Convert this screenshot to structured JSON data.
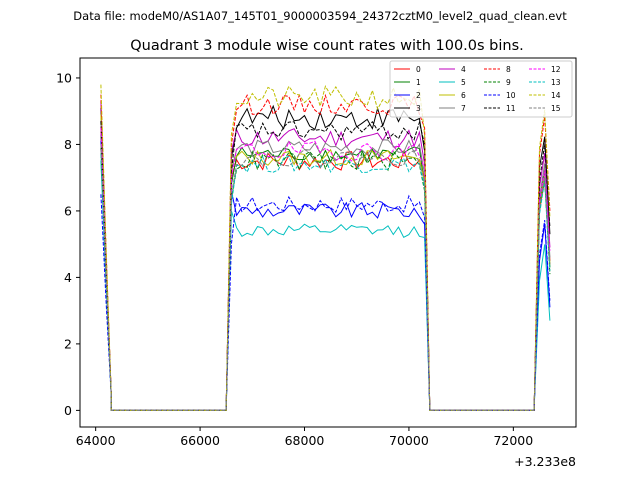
{
  "header": {
    "data_file": "Data file: modeM0/AS1A07_145T01_9000003594_24372cztM0_level2_quad_clean.evt",
    "title": "Quadrant 3 module wise count rates with 100.0s bins."
  },
  "chart_data": {
    "type": "line",
    "title": "Quadrant 3 module wise count rates with 100.0s bins.",
    "xlabel": "",
    "ylabel": "",
    "x_offset_label": "+3.233e8",
    "xlim": [
      63700,
      73200
    ],
    "ylim": [
      -0.5,
      10.6
    ],
    "xticks": [
      64000,
      66000,
      68000,
      70000,
      72000
    ],
    "xtick_labels": [
      "64000",
      "66000",
      "68000",
      "70000",
      "72000"
    ],
    "yticks": [
      0,
      2,
      4,
      6,
      8,
      10
    ],
    "ytick_labels": [
      "0",
      "2",
      "4",
      "6",
      "8",
      "10"
    ],
    "grid": false,
    "legend_position": "top-right",
    "legend_columns": 4,
    "segments": [
      {
        "start": 64100,
        "end": 64300,
        "step": 100
      },
      {
        "start": 64300,
        "end": 66500,
        "step": 100,
        "zero": true
      },
      {
        "start": 66500,
        "end": 70300,
        "step": 100
      },
      {
        "start": 70400,
        "end": 72400,
        "step": 100,
        "zero": true
      },
      {
        "start": 72400,
        "end": 72700,
        "step": 100
      }
    ],
    "series": [
      {
        "name": "0",
        "color": "#ff0000",
        "dash": "solid",
        "level": 7.5,
        "noise": 0.3,
        "first": 8.0,
        "last": 7.0
      },
      {
        "name": "1",
        "color": "#008000",
        "dash": "solid",
        "level": 7.7,
        "noise": 0.25,
        "first": 7.8,
        "last": 6.8
      },
      {
        "name": "2",
        "color": "#0000ff",
        "dash": "solid",
        "level": 6.0,
        "noise": 0.25,
        "first": 7.6,
        "last": 5.6
      },
      {
        "name": "3",
        "color": "#000000",
        "dash": "solid",
        "level": 8.8,
        "noise": 0.35,
        "first": 8.6,
        "last": 7.8
      },
      {
        "name": "4",
        "color": "#bf00bf",
        "dash": "solid",
        "level": 8.2,
        "noise": 0.3,
        "first": 8.8,
        "last": 7.4
      },
      {
        "name": "5",
        "color": "#00bfbf",
        "dash": "solid",
        "level": 5.4,
        "noise": 0.2,
        "first": 7.0,
        "last": 5.2
      },
      {
        "name": "6",
        "color": "#bfbf00",
        "dash": "solid",
        "level": 7.6,
        "noise": 0.25,
        "first": 8.4,
        "last": 6.9
      },
      {
        "name": "7",
        "color": "#808080",
        "dash": "solid",
        "level": 7.9,
        "noise": 0.25,
        "first": 8.2,
        "last": 7.1
      },
      {
        "name": "8",
        "color": "#ff0000",
        "dash": "dashed",
        "level": 9.2,
        "noise": 0.3,
        "first": 9.0,
        "last": 8.5
      },
      {
        "name": "9",
        "color": "#008000",
        "dash": "dashed",
        "level": 7.5,
        "noise": 0.3,
        "first": 7.4,
        "last": 6.6
      },
      {
        "name": "10",
        "color": "#0000ff",
        "dash": "dashed",
        "level": 6.2,
        "noise": 0.25,
        "first": 6.0,
        "last": 5.8
      },
      {
        "name": "11",
        "color": "#000000",
        "dash": "dashed",
        "level": 8.4,
        "noise": 0.3,
        "first": 8.2,
        "last": 8.0
      },
      {
        "name": "12",
        "color": "#ff00ff",
        "dash": "dashed",
        "level": 7.8,
        "noise": 0.3,
        "first": 8.0,
        "last": 7.3
      },
      {
        "name": "13",
        "color": "#00bfbf",
        "dash": "dashed",
        "level": 7.4,
        "noise": 0.25,
        "first": 7.2,
        "last": 6.7
      },
      {
        "name": "14",
        "color": "#bfbf00",
        "dash": "dashed",
        "level": 9.4,
        "noise": 0.35,
        "first": 9.3,
        "last": 8.3
      },
      {
        "name": "15",
        "color": "#808080",
        "dash": "dashed",
        "level": 7.6,
        "noise": 0.25,
        "first": 7.5,
        "last": 6.9
      }
    ]
  }
}
